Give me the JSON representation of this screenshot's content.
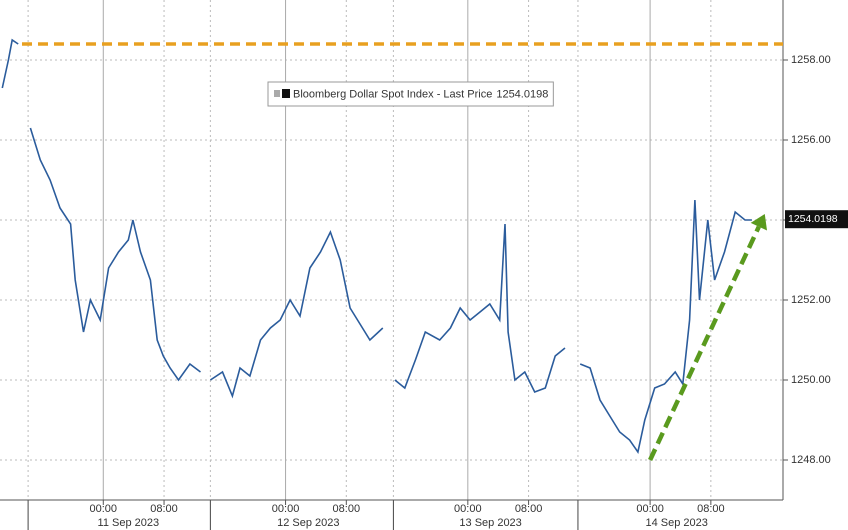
{
  "chart_data": {
    "type": "line",
    "series": [
      {
        "name": "Bloomberg Dollar Spot Index - Last Price",
        "color": "#2b5c9c",
        "x": [
          -13.3,
          -12.5,
          -12.0,
          -11.2,
          -10.5,
          -9.6,
          -8.3,
          -7.0,
          -5.7,
          -4.3,
          -3.7,
          -2.6,
          -1.7,
          -0.4,
          0.7,
          2.0,
          3.3,
          3.9,
          4.9,
          6.2,
          7.1,
          7.9,
          8.8,
          9.9,
          11.4,
          12.8,
          13.5,
          14.1,
          15.7,
          17.0,
          18.0,
          19.3,
          20.7,
          22.0,
          23.3,
          24.6,
          25.9,
          27.2,
          28.6,
          29.9,
          31.2,
          32.5,
          33.8,
          35.1,
          36.8,
          37.5,
          38.4,
          39.7,
          41.1,
          42.4,
          44.3,
          45.7,
          47.0,
          48.3,
          49.6,
          50.9,
          52.2,
          52.9,
          53.3,
          54.2,
          55.5,
          56.8,
          58.2,
          59.5,
          60.8,
          62.0,
          62.8,
          64.1,
          65.4,
          66.7,
          68.0,
          69.3,
          70.4,
          71.3,
          72.6,
          73.9,
          75.3,
          76.3,
          77.2,
          77.9,
          78.5,
          79.6,
          80.5,
          81.8,
          83.2,
          84.5,
          85.4
        ],
        "values": [
          1257.3,
          1258.0,
          1258.5,
          1258.4,
          null,
          1256.3,
          1255.5,
          1255.0,
          1254.3,
          1253.9,
          1252.5,
          1251.2,
          1252.0,
          1251.5,
          1252.8,
          1253.2,
          1253.5,
          1254.0,
          1253.2,
          1252.5,
          1251.0,
          1250.6,
          1250.3,
          1250.0,
          1250.4,
          1250.2,
          null,
          1250.0,
          1250.2,
          1249.6,
          1250.3,
          1250.1,
          1251.0,
          1251.3,
          1251.5,
          1252.0,
          1251.6,
          1252.8,
          1253.2,
          1253.7,
          1253.0,
          1251.8,
          1251.4,
          1251.0,
          1251.3,
          null,
          1250.0,
          1249.8,
          1250.5,
          1251.2,
          1251.0,
          1251.3,
          1251.8,
          1251.5,
          1251.7,
          1251.9,
          1251.5,
          1253.9,
          1251.2,
          1250.0,
          1250.2,
          1249.7,
          1249.8,
          1250.6,
          1250.8,
          null,
          1250.4,
          1250.3,
          1249.5,
          1249.1,
          1248.7,
          1248.5,
          1248.2,
          1249.0,
          1249.8,
          1249.9,
          1250.2,
          1249.9,
          1251.5,
          1254.5,
          1252.0,
          1254.0,
          1252.5,
          1253.2,
          1254.2,
          1254.0,
          1254.0
        ]
      }
    ],
    "last_price": 1254.0198,
    "reference_line": {
      "value": 1258.4,
      "color": "#e8a020"
    },
    "trend_arrow": {
      "x": [
        72,
        87.1
      ],
      "y": [
        1248,
        1254.15
      ],
      "color": "#5a9a1e"
    },
    "xlim": [
      -13.6,
      89.5
    ],
    "ylim": [
      1247,
      1259.5
    ],
    "yticks": [
      {
        "value": 1248,
        "label": "1248.00"
      },
      {
        "value": 1250,
        "label": "1250.00"
      },
      {
        "value": 1252,
        "label": "1252.00"
      },
      {
        "value": 1254,
        "label": "1254.00"
      },
      {
        "value": 1256,
        "label": "1256.00"
      },
      {
        "value": 1258,
        "label": "1258.00"
      }
    ],
    "xticks": [
      {
        "value": 0,
        "label": "00:00"
      },
      {
        "value": 8,
        "label": "08:00"
      },
      {
        "value": 24,
        "label": "00:00"
      },
      {
        "value": 32,
        "label": "08:00"
      },
      {
        "value": 48,
        "label": "00:00"
      },
      {
        "value": 56,
        "label": "08:00"
      },
      {
        "value": 72,
        "label": "00:00"
      },
      {
        "value": 80,
        "label": "08:00"
      }
    ],
    "date_ticks": [
      {
        "value": 3.3,
        "label": "11 Sep 2023"
      },
      {
        "value": 27,
        "label": "12 Sep 2023"
      },
      {
        "value": 51,
        "label": "13 Sep 2023"
      },
      {
        "value": 75.5,
        "label": "14 Sep 2023"
      }
    ],
    "day_separators": [
      -9.9,
      14.1,
      38.2,
      62.5
    ],
    "grid": true
  }
}
